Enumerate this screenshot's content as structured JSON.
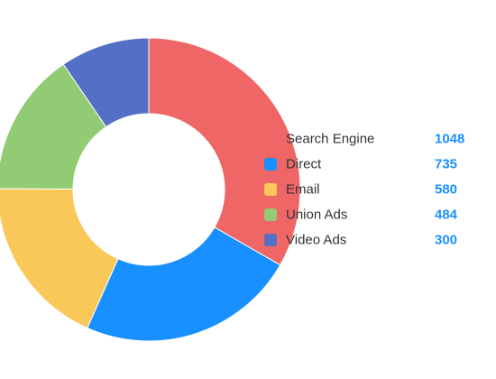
{
  "chart_data": {
    "type": "pie",
    "variant": "donut",
    "title": "",
    "legend_position": "right",
    "slices": [
      {
        "label": "Search Engine",
        "value": 1048,
        "color": "#ee6666"
      },
      {
        "label": "Direct",
        "value": 735,
        "color": "#1890ff"
      },
      {
        "label": "Email",
        "value": 580,
        "color": "#fac858"
      },
      {
        "label": "Union Ads",
        "value": 484,
        "color": "#91cc75"
      },
      {
        "label": "Video Ads",
        "value": 300,
        "color": "#5470c6"
      }
    ]
  }
}
